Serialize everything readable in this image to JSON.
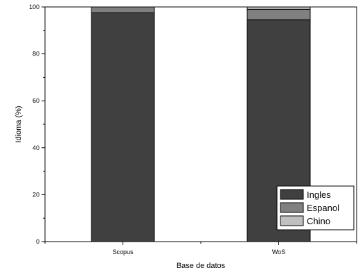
{
  "chart_data": {
    "type": "bar",
    "stacked": true,
    "categories": [
      "Scopus",
      "WoS"
    ],
    "series": [
      {
        "name": "Ingles",
        "values": [
          97.5,
          94.5
        ],
        "color": "#404040"
      },
      {
        "name": "Espanol",
        "values": [
          2.5,
          4.5
        ],
        "color": "#808080"
      },
      {
        "name": "Chino",
        "values": [
          0.0,
          1.0
        ],
        "color": "#c0c0c0"
      }
    ],
    "title": "",
    "xlabel": "Base de datos",
    "ylabel": "Idioma (%)",
    "ylim": [
      0,
      100
    ],
    "yticks": [
      0,
      20,
      40,
      60,
      80,
      100
    ],
    "grid": false,
    "legend_position": "bottom-right"
  }
}
